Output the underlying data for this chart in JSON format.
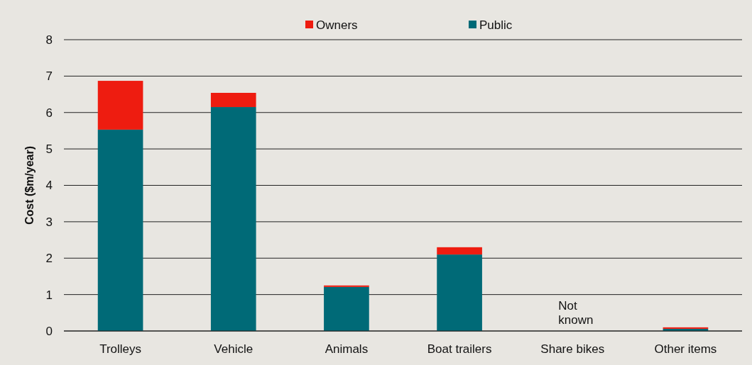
{
  "chart_data": {
    "type": "bar",
    "stacked": true,
    "ylabel": "Cost ($m/year)",
    "categories": [
      "Trolleys",
      "Vehicle",
      "Animals",
      "Boat trailers",
      "Share bikes",
      "Other items"
    ],
    "series": [
      {
        "name": "Public",
        "color": "#006a77",
        "values": [
          5.53,
          6.15,
          1.21,
          2.1,
          null,
          0.06
        ]
      },
      {
        "name": "Owners",
        "color": "#ee1c10",
        "values": [
          1.34,
          0.39,
          0.04,
          0.2,
          null,
          0.04
        ]
      }
    ],
    "ylim": [
      0,
      8
    ],
    "yticks": [
      0,
      1,
      2,
      3,
      4,
      5,
      6,
      7,
      8
    ],
    "grid": "y",
    "legend": "top",
    "annotations": [
      "Not\nknown"
    ]
  }
}
